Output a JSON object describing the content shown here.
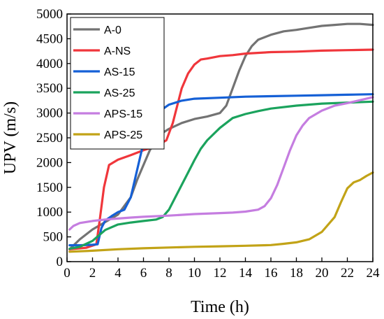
{
  "chart_data": {
    "type": "line",
    "xlabel": "Time (h)",
    "ylabel": "UPV (m/s)",
    "xlim": [
      0,
      24
    ],
    "ylim": [
      0,
      5000
    ],
    "xticks": [
      0,
      2,
      4,
      6,
      8,
      10,
      12,
      14,
      16,
      18,
      20,
      22,
      24
    ],
    "yticks": [
      0,
      500,
      1000,
      1500,
      2000,
      2500,
      3000,
      3500,
      4000,
      4500,
      5000
    ],
    "grid": false,
    "legend_position": "top-left",
    "series": [
      {
        "name": "A-0",
        "color": "#737373",
        "points": [
          [
            0.2,
            250
          ],
          [
            1,
            450
          ],
          [
            2,
            650
          ],
          [
            3,
            800
          ],
          [
            4,
            950
          ],
          [
            5,
            1300
          ],
          [
            5.5,
            1650
          ],
          [
            6,
            1950
          ],
          [
            6.5,
            2250
          ],
          [
            7,
            2450
          ],
          [
            7.5,
            2600
          ],
          [
            8,
            2680
          ],
          [
            9,
            2800
          ],
          [
            10,
            2880
          ],
          [
            11,
            2930
          ],
          [
            12,
            3000
          ],
          [
            12.5,
            3150
          ],
          [
            13,
            3500
          ],
          [
            13.5,
            3850
          ],
          [
            14,
            4150
          ],
          [
            14.5,
            4350
          ],
          [
            15,
            4480
          ],
          [
            16,
            4580
          ],
          [
            17,
            4650
          ],
          [
            18,
            4680
          ],
          [
            19,
            4720
          ],
          [
            20,
            4760
          ],
          [
            21,
            4780
          ],
          [
            22,
            4800
          ],
          [
            23,
            4800
          ],
          [
            24,
            4780
          ]
        ]
      },
      {
        "name": "A-NS",
        "color": "#f0363b",
        "points": [
          [
            0.2,
            250
          ],
          [
            1.5,
            280
          ],
          [
            2.3,
            350
          ],
          [
            2.6,
            900
          ],
          [
            2.9,
            1500
          ],
          [
            3.3,
            1950
          ],
          [
            4,
            2060
          ],
          [
            5,
            2150
          ],
          [
            6,
            2250
          ],
          [
            7,
            2330
          ],
          [
            7.8,
            2450
          ],
          [
            8.3,
            2800
          ],
          [
            8.7,
            3200
          ],
          [
            9,
            3500
          ],
          [
            9.5,
            3800
          ],
          [
            10,
            3980
          ],
          [
            10.5,
            4080
          ],
          [
            11,
            4100
          ],
          [
            12,
            4150
          ],
          [
            13,
            4170
          ],
          [
            14,
            4200
          ],
          [
            16,
            4230
          ],
          [
            18,
            4240
          ],
          [
            20,
            4260
          ],
          [
            22,
            4270
          ],
          [
            24,
            4280
          ]
        ]
      },
      {
        "name": "AS-15",
        "color": "#1560d6",
        "points": [
          [
            0.2,
            330
          ],
          [
            1,
            330
          ],
          [
            2,
            340
          ],
          [
            2.4,
            350
          ],
          [
            2.7,
            680
          ],
          [
            3,
            830
          ],
          [
            3.5,
            920
          ],
          [
            4,
            1000
          ],
          [
            4.5,
            1050
          ],
          [
            5,
            1300
          ],
          [
            5.5,
            1850
          ],
          [
            6,
            2400
          ],
          [
            6.5,
            2750
          ],
          [
            7,
            2950
          ],
          [
            7.5,
            3080
          ],
          [
            8,
            3170
          ],
          [
            9,
            3250
          ],
          [
            10,
            3290
          ],
          [
            12,
            3310
          ],
          [
            14,
            3330
          ],
          [
            16,
            3340
          ],
          [
            18,
            3350
          ],
          [
            20,
            3360
          ],
          [
            22,
            3370
          ],
          [
            24,
            3380
          ]
        ]
      },
      {
        "name": "AS-25",
        "color": "#1ba35d",
        "points": [
          [
            0.2,
            260
          ],
          [
            1,
            300
          ],
          [
            2,
            420
          ],
          [
            3,
            640
          ],
          [
            4,
            750
          ],
          [
            5,
            790
          ],
          [
            6,
            820
          ],
          [
            7,
            850
          ],
          [
            7.5,
            900
          ],
          [
            8,
            1050
          ],
          [
            8.5,
            1300
          ],
          [
            9,
            1550
          ],
          [
            9.5,
            1800
          ],
          [
            10,
            2050
          ],
          [
            10.5,
            2280
          ],
          [
            11,
            2450
          ],
          [
            12,
            2700
          ],
          [
            13,
            2900
          ],
          [
            14,
            2980
          ],
          [
            15,
            3040
          ],
          [
            16,
            3090
          ],
          [
            18,
            3150
          ],
          [
            20,
            3190
          ],
          [
            22,
            3210
          ],
          [
            24,
            3230
          ]
        ]
      },
      {
        "name": "APS-15",
        "color": "#c57de0",
        "points": [
          [
            0.2,
            650
          ],
          [
            0.5,
            720
          ],
          [
            1,
            780
          ],
          [
            2,
            820
          ],
          [
            3,
            850
          ],
          [
            4,
            870
          ],
          [
            5,
            890
          ],
          [
            6,
            905
          ],
          [
            8,
            930
          ],
          [
            10,
            960
          ],
          [
            12,
            980
          ],
          [
            13,
            990
          ],
          [
            14,
            1010
          ],
          [
            15,
            1050
          ],
          [
            15.5,
            1120
          ],
          [
            16,
            1280
          ],
          [
            16.5,
            1550
          ],
          [
            17,
            1900
          ],
          [
            17.5,
            2250
          ],
          [
            18,
            2550
          ],
          [
            18.5,
            2750
          ],
          [
            19,
            2900
          ],
          [
            20,
            3050
          ],
          [
            21,
            3150
          ],
          [
            22,
            3200
          ],
          [
            23,
            3260
          ],
          [
            24,
            3320
          ]
        ]
      },
      {
        "name": "APS-25",
        "color": "#c2a317",
        "points": [
          [
            0.2,
            200
          ],
          [
            2,
            220
          ],
          [
            4,
            250
          ],
          [
            6,
            270
          ],
          [
            8,
            285
          ],
          [
            10,
            300
          ],
          [
            12,
            310
          ],
          [
            14,
            320
          ],
          [
            16,
            335
          ],
          [
            17,
            360
          ],
          [
            18,
            390
          ],
          [
            19,
            450
          ],
          [
            20,
            600
          ],
          [
            21,
            900
          ],
          [
            21.5,
            1200
          ],
          [
            22,
            1480
          ],
          [
            22.5,
            1600
          ],
          [
            23,
            1650
          ],
          [
            23.5,
            1730
          ],
          [
            24,
            1800
          ]
        ]
      }
    ]
  }
}
